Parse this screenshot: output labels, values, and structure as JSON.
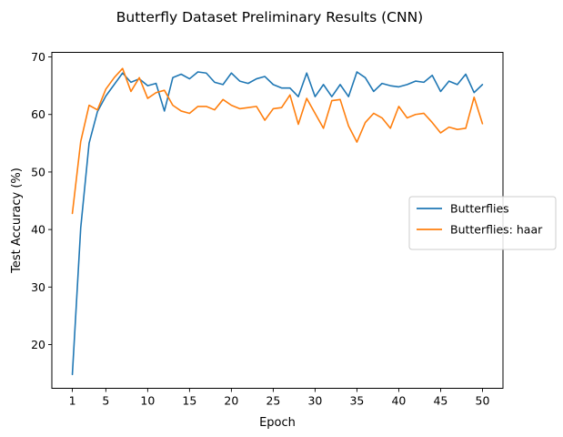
{
  "chart_data": {
    "type": "line",
    "title": "Butterfly Dataset Preliminary Results (CNN)",
    "xlabel": "Epoch",
    "ylabel": "Test Accuracy (%)",
    "xlim": [
      -1.45,
      52.45
    ],
    "ylim": [
      12.4,
      70.8
    ],
    "xticks": [
      1,
      5,
      10,
      15,
      20,
      25,
      30,
      35,
      40,
      45,
      50
    ],
    "yticks": [
      20,
      30,
      40,
      50,
      60,
      70
    ],
    "grid": false,
    "legend_position": "center-right",
    "x": [
      1,
      2,
      3,
      4,
      5,
      6,
      7,
      8,
      9,
      10,
      11,
      12,
      13,
      14,
      15,
      16,
      17,
      18,
      19,
      20,
      21,
      22,
      23,
      24,
      25,
      26,
      27,
      28,
      29,
      30,
      31,
      32,
      33,
      34,
      35,
      36,
      37,
      38,
      39,
      40,
      41,
      42,
      43,
      44,
      45,
      46,
      47,
      48,
      49,
      50
    ],
    "series": [
      {
        "name": "Butterflies",
        "color": "#1f77b4",
        "values": [
          14.8,
          40.3,
          55.0,
          60.5,
          63.2,
          65.2,
          67.2,
          65.6,
          66.2,
          65.0,
          65.4,
          60.6,
          66.4,
          67.0,
          66.2,
          67.4,
          67.2,
          65.6,
          65.2,
          67.2,
          65.8,
          65.4,
          66.2,
          66.6,
          65.2,
          64.6,
          64.6,
          63.1,
          67.2,
          63.1,
          65.2,
          63.1,
          65.2,
          63.1,
          67.4,
          66.4,
          64.0,
          65.4,
          65.0,
          64.8,
          65.2,
          65.8,
          65.6,
          66.8,
          64.0,
          65.8,
          65.2,
          67.0,
          63.8,
          65.2
        ]
      },
      {
        "name": "Butterflies: haar",
        "color": "#ff7f0e",
        "values": [
          42.8,
          55.3,
          61.6,
          60.8,
          64.4,
          66.4,
          68.0,
          64.0,
          66.4,
          62.8,
          63.8,
          64.2,
          61.6,
          60.6,
          60.2,
          61.4,
          61.4,
          60.8,
          62.6,
          61.6,
          61.0,
          61.2,
          61.4,
          59.0,
          61.0,
          61.2,
          63.4,
          58.3,
          62.8,
          60.2,
          57.6,
          62.4,
          62.6,
          58.0,
          55.2,
          58.6,
          60.2,
          59.4,
          57.6,
          61.4,
          59.4,
          60.0,
          60.2,
          58.6,
          56.8,
          57.8,
          57.4,
          57.6,
          63.0,
          58.4
        ]
      }
    ]
  }
}
